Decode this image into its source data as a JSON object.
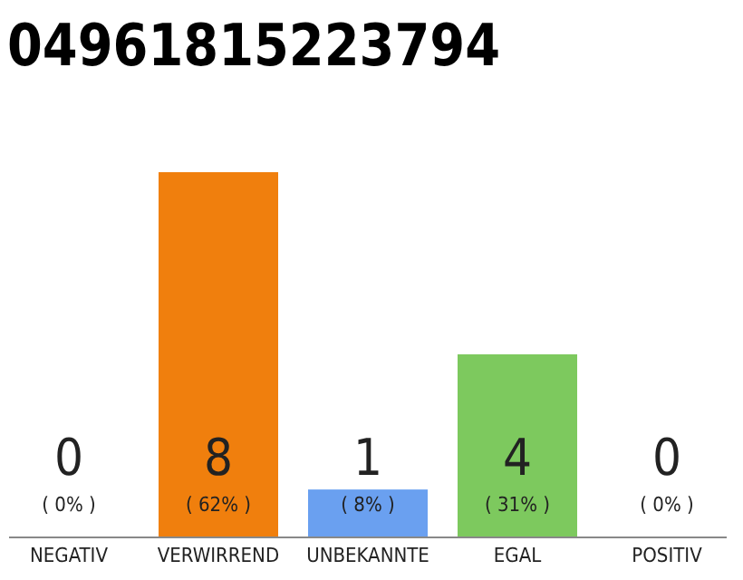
{
  "chart_data": {
    "type": "bar",
    "title": "04961815223794",
    "categories": [
      "NEGATIV",
      "VERWIRREND",
      "UNBEKANNTE",
      "EGAL",
      "POSITIV"
    ],
    "values": [
      0,
      62,
      8,
      31,
      0
    ],
    "colors": [
      "#cccccc",
      "#f07f0d",
      "#6aa0f0",
      "#7dc95e",
      "#cccccc"
    ],
    "tick_labels": "x",
    "value_labels": [
      "( 0% )",
      "( 62% )",
      "( 8% )",
      "( 31% )",
      "( 0% )"
    ],
    "annotations": [
      "0",
      "8",
      "1",
      "4",
      "0"
    ]
  }
}
